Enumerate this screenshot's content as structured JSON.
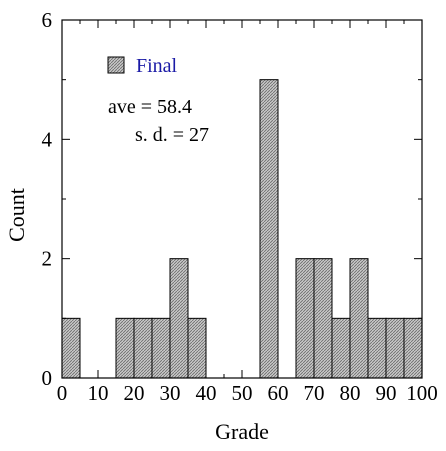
{
  "chart_data": {
    "type": "bar",
    "bin_width": 5,
    "x": [
      0,
      5,
      10,
      15,
      20,
      25,
      30,
      35,
      40,
      45,
      50,
      55,
      60,
      65,
      70,
      75,
      80,
      85,
      90,
      95
    ],
    "values": [
      1,
      0,
      0,
      1,
      1,
      1,
      2,
      1,
      0,
      0,
      0,
      5,
      0,
      2,
      2,
      1,
      2,
      1,
      1,
      1
    ],
    "xlabel": "Grade",
    "ylabel": "Count",
    "xlim": [
      0,
      100
    ],
    "ylim": [
      0,
      6
    ],
    "xticks": [
      0,
      10,
      20,
      30,
      40,
      50,
      60,
      70,
      80,
      90,
      100
    ],
    "yticks": [
      0,
      2,
      4,
      6
    ],
    "legend": {
      "label": "Final",
      "placement": "top-left",
      "text_color": "#1a1aa6"
    },
    "annotations": [
      "ave = 58.4",
      "s. d. = 27"
    ],
    "bar_fill": "#b4b4b4",
    "bar_stroke": "#000000",
    "grid": false
  }
}
